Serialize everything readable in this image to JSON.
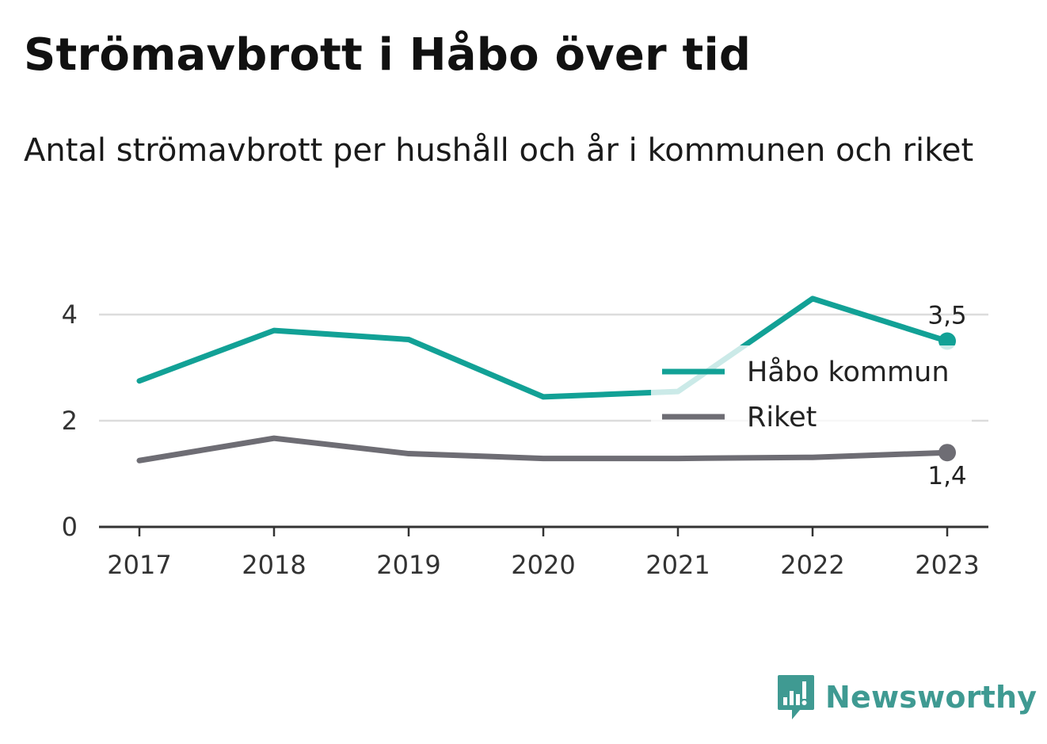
{
  "title": "Strömavbrott i Håbo över tid",
  "subtitle": "Antal strömavbrott per hushåll och år i kommunen och riket",
  "brand": {
    "name": "Newsworthy",
    "color": "#3f9a92"
  },
  "chart_data": {
    "type": "line",
    "x": [
      "2017",
      "2018",
      "2019",
      "2020",
      "2021",
      "2022",
      "2023"
    ],
    "ylim": [
      0,
      5
    ],
    "yticks": [
      0,
      2,
      4
    ],
    "grid": true,
    "legend_position": "right",
    "series": [
      {
        "name": "Håbo kommun",
        "color": "#12a196",
        "values": [
          2.75,
          3.7,
          3.53,
          2.45,
          2.55,
          4.3,
          3.5
        ],
        "end_label": "3,5"
      },
      {
        "name": "Riket",
        "color": "#6e6d74",
        "values": [
          1.25,
          1.67,
          1.38,
          1.29,
          1.29,
          1.31,
          1.4
        ],
        "end_label": "1,4"
      }
    ]
  }
}
